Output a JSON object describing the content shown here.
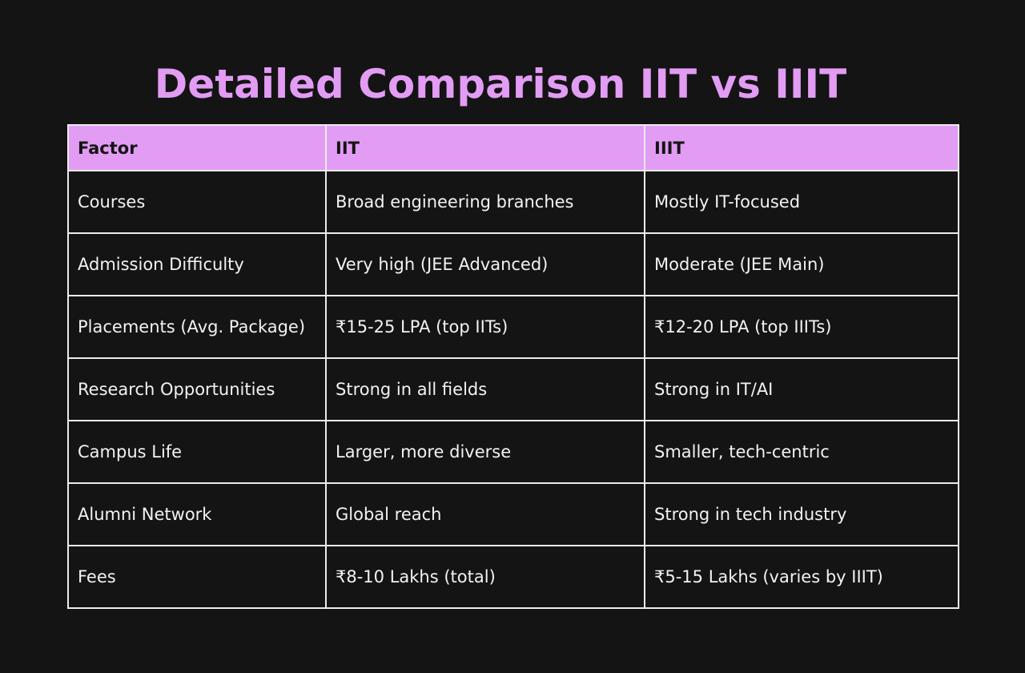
{
  "title": "Detailed Comparison IIT vs IIIT",
  "table": {
    "headers": [
      "Factor",
      "IIT",
      "IIIT"
    ],
    "rows": [
      [
        "Courses",
        "Broad engineering branches",
        "Mostly IT-focused"
      ],
      [
        "Admission Difficulty",
        "Very high (JEE Advanced)",
        "Moderate (JEE Main)"
      ],
      [
        "Placements (Avg. Package)",
        "₹15-25 LPA (top IITs)",
        "₹12-20 LPA (top IIITs)"
      ],
      [
        "Research Opportunities",
        "Strong in all fields",
        "Strong in IT/AI"
      ],
      [
        "Campus Life",
        "Larger, more diverse",
        "Smaller, tech-centric"
      ],
      [
        "Alumni Network",
        "Global reach",
        "Strong in tech industry"
      ],
      [
        "Fees",
        "₹8-10 Lakhs (total)",
        "₹5-15 Lakhs (varies by IIIT)"
      ]
    ]
  },
  "colors": {
    "background": "#141414",
    "accent": "#e29cf4",
    "border": "#ececec",
    "text": "#f2f2f2"
  }
}
